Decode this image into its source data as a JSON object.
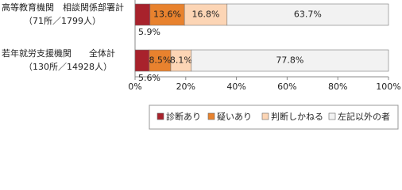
{
  "chart_data": {
    "type": "stacked-bar-horizontal",
    "categories": [
      "高等教育機関　相談関係部署計",
      "若年就労支援機関　　全体計"
    ],
    "category_notes": [
      "（71所／1799人）",
      "（130所／14928人）"
    ],
    "series": [
      {
        "name": "診断あり",
        "color": "#a8222c",
        "values": [
          5.9,
          5.6
        ],
        "value_labels": [
          "5.9%",
          "5.6%"
        ]
      },
      {
        "name": "疑いあり",
        "color": "#e8822e",
        "values": [
          13.6,
          8.5
        ],
        "value_labels": [
          "13.6%",
          "8.5%"
        ]
      },
      {
        "name": "判断しかねる",
        "color": "#fcd5b5",
        "values": [
          16.8,
          8.1
        ],
        "value_labels": [
          "16.8%",
          "8.1%"
        ]
      },
      {
        "name": "左記以外の者",
        "color": "#f2f2f2",
        "values": [
          63.7,
          77.8
        ],
        "value_labels": [
          "63.7%",
          "77.8%"
        ]
      }
    ],
    "xlim": [
      0,
      100
    ],
    "xticks": [
      {
        "value": 0,
        "label": "0%"
      },
      {
        "value": 20,
        "label": "20%"
      },
      {
        "value": 40,
        "label": "40%"
      },
      {
        "value": 60,
        "label": "60%"
      },
      {
        "value": 80,
        "label": "80%"
      },
      {
        "value": 100,
        "label": "100%"
      }
    ],
    "legend": "bottom-right"
  }
}
